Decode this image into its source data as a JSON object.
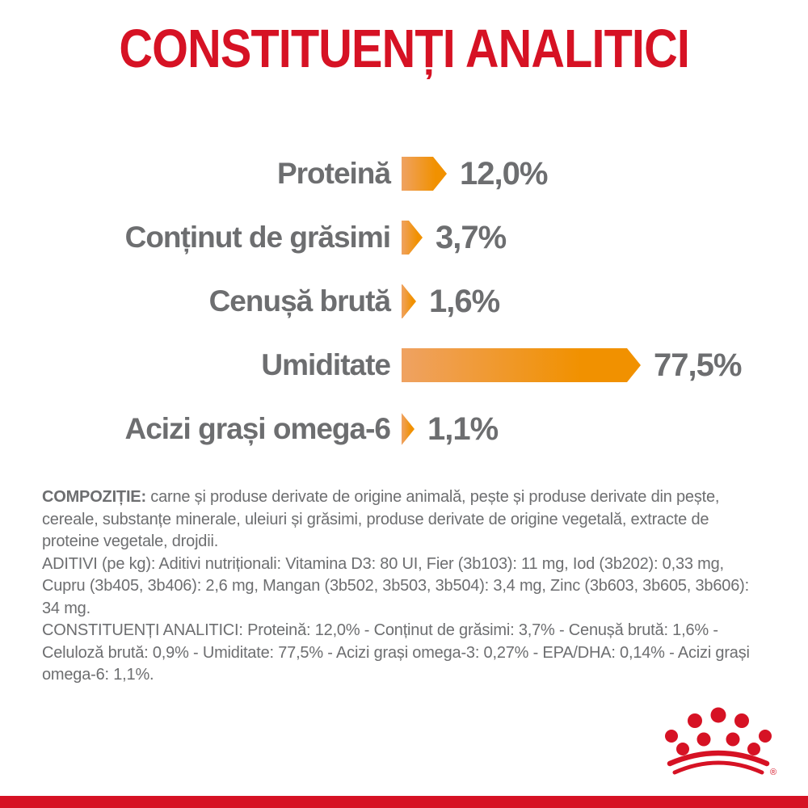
{
  "theme": {
    "brand_red": "#d61224",
    "text_grey": "#6d6e70",
    "bar_orange_light": "#efa262",
    "bar_orange_dark": "#f19100"
  },
  "page": {
    "title": "CONSTITUENȚI ANALITICI"
  },
  "chart_data": {
    "type": "bar",
    "orientation": "horizontal",
    "title": "CONSTITUENȚI ANALITICI",
    "unit": "%",
    "categories": [
      "Proteină",
      "Conținut de grăsimi",
      "Cenușă brută",
      "Umiditate",
      "Acizi grași omega-6"
    ],
    "values": [
      12.0,
      3.7,
      1.6,
      77.5,
      1.1
    ],
    "value_labels": [
      "12,0%",
      "3,7%",
      "1,6%",
      "77,5%",
      "1,1%"
    ],
    "xlim": [
      0,
      80
    ],
    "grid": false,
    "legend": false,
    "bar_style": "arrow-pointed-right, orange gradient"
  },
  "info": {
    "composition": {
      "label": "COMPOZIȚIE:",
      "text": " carne și produse derivate de origine animală, pește și produse derivate din pește, cereale, substanțe minerale, uleiuri și grăsimi, produse derivate de origine vegetală, extracte de proteine vegetale, drojdii."
    },
    "additives": {
      "label": "ADITIVI (pe kg):",
      "text": " Aditivi nutriționali: Vitamina D3: 80 UI, Fier (3b103): 11 mg, Iod (3b202): 0,33 mg, Cupru (3b405, 3b406): 2,6 mg, Mangan (3b502, 3b503, 3b504): 3,4 mg, Zinc (3b603, 3b605, 3b606): 34 mg."
    },
    "analytical": {
      "label": "CONSTITUENȚI ANALITICI:",
      "text": " Proteină: 12,0% - Conținut de grăsimi: 3,7% - Cenușă brută: 1,6% - Celuloză brută: 0,9% - Umiditate: 77,5% - Acizi grași omega-3: 0,27% - EPA/DHA: 0,14% - Acizi grași omega-6: 1,1%."
    }
  },
  "logo": {
    "name": "royal-canin-crown",
    "registered_mark": "®"
  }
}
